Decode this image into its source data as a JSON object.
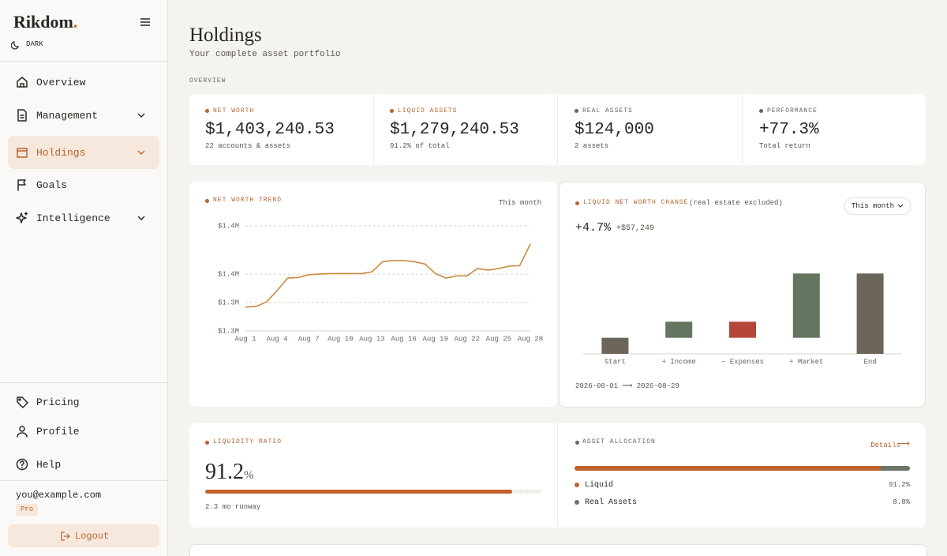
{
  "sidebar": {
    "brand": "Rikdom",
    "theme": "DARK",
    "nav": [
      "Overview",
      "Management",
      "Holdings",
      "Goals",
      "Intelligence"
    ],
    "footer_nav": [
      "Pricing",
      "Profile",
      "Help"
    ],
    "user": {
      "email": "you@example.com",
      "plan": "Pro"
    },
    "logout": "Logout"
  },
  "header": {
    "title": "Holdings",
    "subtitle": "Your complete asset portfolio"
  },
  "section_label": "OVERVIEW",
  "stats": [
    {
      "label": "NET WORTH",
      "value": "$1,403,240.53",
      "note": "22 accounts & assets",
      "color": "#c0622b"
    },
    {
      "label": "LIQUID ASSETS",
      "value": "$1,279,240.53",
      "note": "91.2% of total",
      "color": "#c0622b"
    },
    {
      "label": "REAL ASSETS",
      "value": "$124,000",
      "note": "2 assets",
      "color": "#6b655c"
    },
    {
      "label": "PERFORMANCE",
      "value": "+77.3%",
      "note": "Total return",
      "color": "#6b655c"
    }
  ],
  "chart_data": [
    {
      "type": "line",
      "title": "NET WORTH TREND",
      "period": "This month",
      "categories": [
        "Aug 1",
        null,
        null,
        "Aug 4",
        null,
        null,
        "Aug 7",
        null,
        null,
        "Aug 10",
        null,
        null,
        "Aug 13",
        null,
        null,
        "Aug 16",
        null,
        null,
        "Aug 19",
        null,
        null,
        "Aug 22",
        null,
        null,
        "Aug 25",
        null,
        null,
        "Aug 28"
      ],
      "values": [
        1292000,
        1293000,
        1301000,
        1321000,
        1343000,
        1344000,
        1349000,
        1350000,
        1351000,
        1351000,
        1351000,
        1351000,
        1354000,
        1372000,
        1374000,
        1374000,
        1372000,
        1368000,
        1351000,
        1343000,
        1347000,
        1347000,
        1360000,
        1357000,
        1360000,
        1364000,
        1365000,
        1403000
      ],
      "color": "#c98a3e",
      "ylim": [
        1250000,
        1435000
      ],
      "yticks": [
        {
          "value": 1250000,
          "label": "$1.3M"
        },
        {
          "value": 1300000,
          "label": "$1.3M"
        },
        {
          "value": 1350000,
          "label": "$1.4M"
        },
        {
          "value": 1435000,
          "label": "$1.4M"
        }
      ],
      "grid": true
    },
    {
      "type": "waterfall",
      "title": "LIQUID NET WORTH CHANGE",
      "note": "(real estate excluded)",
      "period": "This month",
      "change": "+4.7%",
      "amount": "+$57,249",
      "date_from": "2026-08-01",
      "date_to": "2026-08-29",
      "categories": [
        "Start",
        "+ Income",
        "− Expenses",
        "+ Market",
        "End"
      ],
      "values": [
        1221991.53,
        14300,
        -14300,
        57249,
        1279240.53
      ],
      "totals": [
        true,
        false,
        false,
        false,
        true
      ],
      "colors": [
        "#6b655c",
        "#647560",
        "#b5473a",
        "#647560",
        "#6b655c"
      ],
      "ylim": [
        1207700,
        1290000
      ]
    }
  ],
  "liquidity": {
    "title": "LIQUIDITY RATIO",
    "value": 91.2,
    "unit": "%",
    "note": "2.3 mo runway",
    "xlim": [
      0,
      100
    ],
    "color": "#c0622b"
  },
  "allocation": {
    "title": "ASSET ALLOCATION",
    "link": "Details",
    "items": [
      {
        "name": "Liquid",
        "value": 91.2,
        "label": "91.2%",
        "color": "#c0622b"
      },
      {
        "name": "Real Assets",
        "value": 8.8,
        "label": "8.8%",
        "color": "#6b7565"
      }
    ]
  }
}
